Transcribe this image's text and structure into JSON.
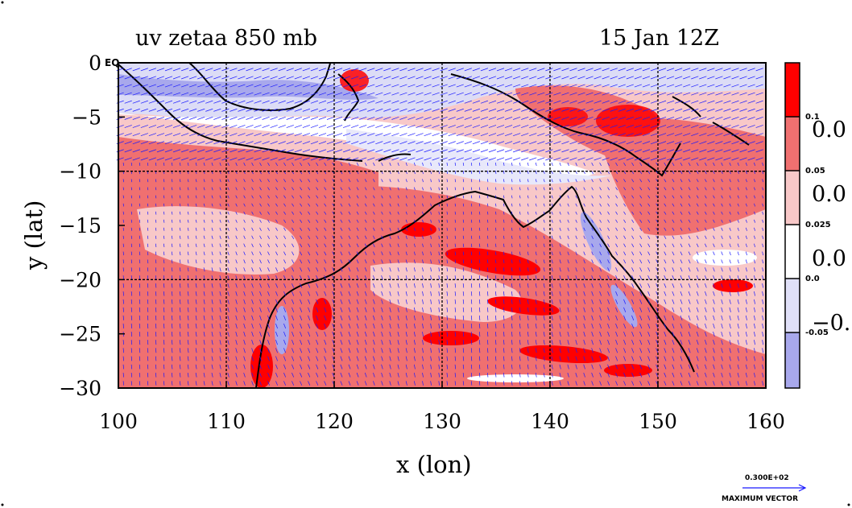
{
  "chart_data": {
    "type": "heatmap",
    "title_left": "uv zetaa 850 mb",
    "title_right": "15 Jan 12Z",
    "xlabel": "x (lon)",
    "ylabel": "y (lat)",
    "xlim": [
      100,
      160
    ],
    "ylim": [
      -30,
      0
    ],
    "x_ticks": [
      "100",
      "110",
      "120",
      "130",
      "140",
      "150",
      "160"
    ],
    "y_ticks": [
      "0",
      "−5",
      "−10",
      "−15",
      "−20",
      "−25",
      "−30"
    ],
    "y_tick_values": [
      0,
      -5,
      -10,
      -15,
      -20,
      -25,
      -30
    ],
    "x_tick_values": [
      100,
      110,
      120,
      130,
      140,
      150,
      160
    ],
    "top_left_label": "EQ",
    "grid": true,
    "colorbar": {
      "levels": [
        "0.1",
        "0.05",
        "0.025",
        "0.0",
        "-0.05"
      ],
      "big_labels": [
        "0.0",
        "0.0",
        "0.0",
        "−0."
      ],
      "colors": [
        "#ff0000",
        "#f07070",
        "#f8c8c8",
        "#ffffff",
        "#e0e0f8",
        "#a8a8ec"
      ]
    },
    "vector_legend": {
      "value": "0.300E+02",
      "label": "MAXIMUM VECTOR"
    },
    "colors": {
      "strong_positive": "#ff0000",
      "positive": "#f07070",
      "weak_positive": "#f8c8c8",
      "neutral": "#ffffff",
      "weak_negative": "#dcdcf6",
      "negative": "#a8a8ec",
      "vectors": "#1a1aff",
      "contour": "#d00000"
    }
  }
}
